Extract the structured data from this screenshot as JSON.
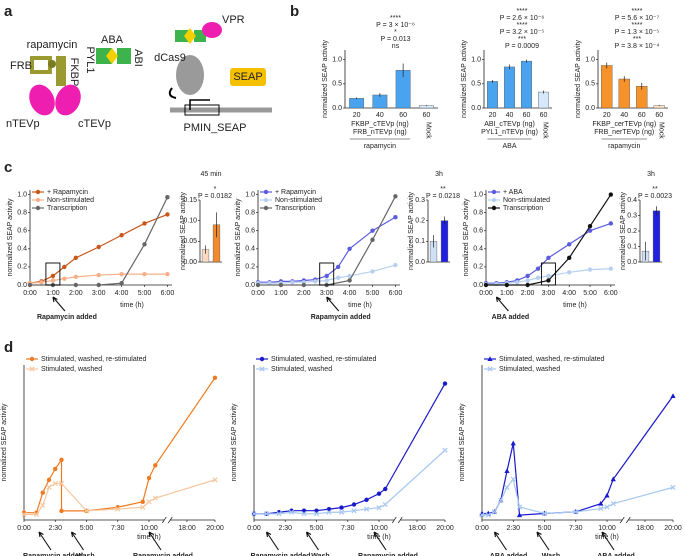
{
  "panels": [
    "a",
    "b",
    "c",
    "d"
  ],
  "diagram": {
    "labels": [
      "rapamycin",
      "ABA",
      "FRB",
      "FKBP",
      "PYL1",
      "ABI",
      "nTEVp",
      "cTEVp",
      "dCas9",
      "VPR",
      "SEAP",
      "PMIN_SEAP"
    ]
  },
  "chart_data": [
    {
      "type": "bar",
      "y_label": "normalized SEAP activity",
      "categories": [
        "20",
        "40",
        "60",
        "60"
      ],
      "values": [
        0.2,
        0.27,
        0.78,
        0.05
      ],
      "errors": [
        0.02,
        0.04,
        0.14,
        0.01
      ],
      "colors": [
        "#4aa3ee",
        "#4aa3ee",
        "#4aa3ee",
        "#d6e8fb"
      ],
      "ylim": [
        0,
        1.2
      ],
      "yticks": [
        {
          "value": 0,
          "label": "0.0"
        },
        {
          "value": 0.5,
          "label": "0.5"
        },
        {
          "value": 1,
          "label": "1.0"
        }
      ],
      "x_label": [
        "FKBP_cTEVp (ng)",
        "FRB_nTEVp (ng)"
      ],
      "group_label": "rapamycin",
      "mock_label": "Mock",
      "annotations": [
        "ns",
        "P = 0.013",
        "*",
        "P = 3 × 10⁻⁶",
        "****"
      ]
    },
    {
      "type": "bar",
      "y_label": "normalized SEAP activity",
      "categories": [
        "20",
        "40",
        "60",
        "60"
      ],
      "values": [
        0.55,
        0.85,
        0.97,
        0.33
      ],
      "errors": [
        0.03,
        0.05,
        0.03,
        0.03
      ],
      "colors": [
        "#4aa3ee",
        "#4aa3ee",
        "#4aa3ee",
        "#d6e8fb"
      ],
      "ylim": [
        0,
        1.2
      ],
      "yticks": [
        {
          "value": 0,
          "label": "0.0"
        },
        {
          "value": 0.5,
          "label": "0.5"
        },
        {
          "value": 1,
          "label": "1.0"
        }
      ],
      "x_label": [
        "ABI_cTEVp (ng)",
        "PYL1_nTEVp (ng)"
      ],
      "group_label": "ABA",
      "mock_label": "Mock",
      "annotations": [
        "P = 0.0009",
        "***",
        "P = 3.2 × 10⁻⁵",
        "****",
        "P = 2.6 × 10⁻⁶",
        "****"
      ]
    },
    {
      "type": "bar",
      "y_label": "normalized SEAP activity",
      "categories": [
        "20",
        "40",
        "60",
        "60"
      ],
      "values": [
        0.88,
        0.6,
        0.45,
        0.05
      ],
      "errors": [
        0.06,
        0.06,
        0.07,
        0.01
      ],
      "colors": [
        "#f5922a",
        "#f5922a",
        "#f5922a",
        "#fde2c4"
      ],
      "ylim": [
        0,
        1.2
      ],
      "yticks": [
        {
          "value": 0,
          "label": "0.0"
        },
        {
          "value": 0.5,
          "label": "0.5"
        },
        {
          "value": 1,
          "label": "1.0"
        }
      ],
      "x_label": [
        "FKBP_cerTEVp (ng)",
        "FRB_nerTEVp (ng)"
      ],
      "group_label": "rapamycin",
      "mock_label": "Mock",
      "annotations": [
        "P = 3.8 × 10⁻⁴",
        "***",
        "P = 1.3 × 10⁻⁵",
        "****",
        "P = 5.6 × 10⁻⁷",
        "****"
      ]
    },
    {
      "type": "line",
      "x_label": "time (h)",
      "y_label": "normalized SEAP activity",
      "annotations": [
        "Rapamycin added"
      ],
      "xlim": [
        0,
        6.2
      ],
      "xticks": [
        {
          "value": 0,
          "label": "0:00"
        },
        {
          "value": 1,
          "label": "1:00"
        },
        {
          "value": 2,
          "label": "2:00"
        },
        {
          "value": 3,
          "label": "3:00"
        },
        {
          "value": 4,
          "label": "4:00"
        },
        {
          "value": 5,
          "label": "5:00"
        },
        {
          "value": 6,
          "label": "6:00"
        }
      ],
      "ylim": [
        0,
        1.05
      ],
      "yticks": [
        {
          "value": 0,
          "label": "0.0"
        },
        {
          "value": 0.2,
          "label": "0.2"
        },
        {
          "value": 0.4,
          "label": "0.4"
        },
        {
          "value": 0.6,
          "label": "0.6"
        },
        {
          "value": 0.8,
          "label": "0.8"
        },
        {
          "value": 1,
          "label": "1.0"
        }
      ],
      "series": [
        {
          "name": "+ Rapamycin",
          "color": "#c8561a",
          "marker": "circle",
          "x": [
            0,
            0.5,
            1,
            1.5,
            2,
            3,
            4,
            5,
            6
          ],
          "values": [
            0.02,
            0.04,
            0.1,
            0.2,
            0.3,
            0.42,
            0.55,
            0.68,
            0.78
          ]
        },
        {
          "name": "Non-stimulated",
          "color": "#f5b08a",
          "marker": "circle",
          "x": [
            0,
            0.5,
            1,
            1.5,
            2,
            3,
            4,
            5,
            6
          ],
          "values": [
            0.02,
            0.03,
            0.05,
            0.07,
            0.09,
            0.11,
            0.12,
            0.12,
            0.12
          ]
        },
        {
          "name": "Transcription",
          "color": "#666666",
          "marker": "circle",
          "x": [
            0,
            1,
            2,
            3,
            4,
            5,
            6
          ],
          "values": [
            0,
            0,
            0,
            0,
            0.02,
            0.45,
            0.97
          ]
        }
      ]
    },
    {
      "type": "bar",
      "title": "45 min",
      "y_label": "normalized SEAP activity",
      "values": [
        0.03,
        0.09
      ],
      "errors": [
        0.01,
        0.03
      ],
      "colors": [
        "#fbd9c0",
        "#f08a2c"
      ],
      "ylim": [
        0,
        0.15
      ],
      "yticks": [
        {
          "value": 0,
          "label": "0.00"
        },
        {
          "value": 0.05,
          "label": "0.05"
        },
        {
          "value": 0.1,
          "label": "0.10"
        },
        {
          "value": 0.15,
          "label": "0.15"
        }
      ],
      "annotations": [
        "P = 0.0182",
        "*"
      ]
    },
    {
      "type": "line",
      "x_label": "time (h)",
      "y_label": "normalized SEAP activity",
      "annotations": [
        "Rapamycin added"
      ],
      "xlim": [
        0,
        6.2
      ],
      "xticks": [
        {
          "value": 0,
          "label": "0:00"
        },
        {
          "value": 1,
          "label": "1:00"
        },
        {
          "value": 2,
          "label": "2:00"
        },
        {
          "value": 3,
          "label": "3:00"
        },
        {
          "value": 4,
          "label": "4:00"
        },
        {
          "value": 5,
          "label": "5:00"
        },
        {
          "value": 6,
          "label": "6:00"
        }
      ],
      "ylim": [
        0,
        1.05
      ],
      "yticks": [
        {
          "value": 0,
          "label": "0.0"
        },
        {
          "value": 0.2,
          "label": "0.2"
        },
        {
          "value": 0.4,
          "label": "0.4"
        },
        {
          "value": 0.6,
          "label": "0.6"
        },
        {
          "value": 0.8,
          "label": "0.8"
        },
        {
          "value": 1,
          "label": "1.0"
        }
      ],
      "series": [
        {
          "name": "+ Rapamycin",
          "color": "#5b5be0",
          "marker": "circle",
          "x": [
            0,
            0.5,
            1,
            1.5,
            2,
            2.5,
            3,
            3.5,
            4,
            5,
            6
          ],
          "values": [
            0.03,
            0.03,
            0.04,
            0.04,
            0.05,
            0.06,
            0.1,
            0.2,
            0.4,
            0.6,
            0.75
          ]
        },
        {
          "name": "Non-stimulated",
          "color": "#b8d0f0",
          "marker": "circle",
          "x": [
            0,
            0.5,
            1,
            1.5,
            2,
            2.5,
            3,
            3.5,
            4,
            5,
            6
          ],
          "values": [
            0.02,
            0.02,
            0.02,
            0.03,
            0.03,
            0.04,
            0.05,
            0.08,
            0.1,
            0.15,
            0.22
          ]
        },
        {
          "name": "Transcription",
          "color": "#666666",
          "marker": "circle",
          "x": [
            0,
            1,
            2,
            3,
            4,
            5,
            6
          ],
          "values": [
            0,
            0,
            0,
            0,
            0.05,
            0.5,
            0.98
          ]
        }
      ]
    },
    {
      "type": "bar",
      "title": "3h",
      "y_label": "normalized SEAP activity",
      "values": [
        0.1,
        0.2
      ],
      "errors": [
        0.03,
        0.02
      ],
      "colors": [
        "#cfe0f5",
        "#2020e0"
      ],
      "ylim": [
        0,
        0.3
      ],
      "yticks": [
        {
          "value": 0,
          "label": "0.0"
        },
        {
          "value": 0.1,
          "label": "0.1"
        },
        {
          "value": 0.2,
          "label": "0.2"
        },
        {
          "value": 0.3,
          "label": "0.3"
        }
      ],
      "annotations": [
        "P = 0.0218",
        "**"
      ]
    },
    {
      "type": "line",
      "x_label": "time (h)",
      "y_label": "normalized SEAP activity",
      "annotations": [
        "ABA added"
      ],
      "xlim": [
        0,
        6.2
      ],
      "xticks": [
        {
          "value": 0,
          "label": "0:00"
        },
        {
          "value": 1,
          "label": "1:00"
        },
        {
          "value": 2,
          "label": "2:00"
        },
        {
          "value": 3,
          "label": "3:00"
        },
        {
          "value": 4,
          "label": "4:00"
        },
        {
          "value": 5,
          "label": "5:00"
        },
        {
          "value": 6,
          "label": "6:00"
        }
      ],
      "ylim": [
        0,
        1.05
      ],
      "yticks": [
        {
          "value": 0,
          "label": "0.0"
        },
        {
          "value": 0.2,
          "label": "0.2"
        },
        {
          "value": 0.4,
          "label": "0.4"
        },
        {
          "value": 0.6,
          "label": "0.6"
        },
        {
          "value": 0.8,
          "label": "0.8"
        },
        {
          "value": 1,
          "label": "1.0"
        }
      ],
      "series": [
        {
          "name": "+ ABA",
          "color": "#5b5be0",
          "marker": "circle",
          "x": [
            0,
            0.5,
            1,
            1.5,
            2,
            2.5,
            3,
            4,
            5,
            6
          ],
          "values": [
            0.02,
            0.02,
            0.03,
            0.05,
            0.1,
            0.18,
            0.3,
            0.45,
            0.6,
            0.68
          ]
        },
        {
          "name": "Non-stimulated",
          "color": "#b8d0f0",
          "marker": "circle",
          "x": [
            0,
            0.5,
            1,
            1.5,
            2,
            2.5,
            3,
            4,
            5,
            6
          ],
          "values": [
            0.01,
            0.01,
            0.02,
            0.03,
            0.05,
            0.08,
            0.1,
            0.14,
            0.17,
            0.18
          ]
        },
        {
          "name": "Transcription",
          "color": "#111111",
          "marker": "circle",
          "x": [
            0,
            1,
            2,
            3,
            4,
            5,
            6
          ],
          "values": [
            0,
            0,
            0,
            0.05,
            0.3,
            0.65,
            1.0
          ]
        }
      ]
    },
    {
      "type": "bar",
      "title": "3h",
      "y_label": "normalized SEAP activity",
      "values": [
        0.07,
        0.33
      ],
      "errors": [
        0.06,
        0.03
      ],
      "colors": [
        "#cfe0f5",
        "#2020e0"
      ],
      "ylim": [
        0,
        0.4
      ],
      "yticks": [
        {
          "value": 0,
          "label": "0.0"
        },
        {
          "value": 0.1,
          "label": "0.1"
        },
        {
          "value": 0.2,
          "label": "0.2"
        },
        {
          "value": 0.3,
          "label": "0.3"
        },
        {
          "value": 0.4,
          "label": "0.4"
        }
      ],
      "annotations": [
        "P = 0.0023",
        "**"
      ]
    },
    {
      "type": "line",
      "broken_axis": true,
      "x_label": "time (h)",
      "y_label": "normalized SEAP activity",
      "annotations": [
        "Rapamycin added",
        "Wash",
        "Rapamycin added"
      ],
      "xlim": [
        0,
        20
      ],
      "xticks": [
        {
          "value": 0,
          "label": "0:00"
        },
        {
          "value": 2.5,
          "label": "2:30"
        },
        {
          "value": 5,
          "label": "5:00"
        },
        {
          "value": 7.5,
          "label": "7:30"
        },
        {
          "value": 10,
          "label": "10:00"
        },
        {
          "value": 18,
          "label": "18:00"
        },
        {
          "value": 20,
          "label": "20:00"
        }
      ],
      "ylim": [
        0,
        0.85
      ],
      "series": [
        {
          "name": "Stimulated, washed, re-stimulated",
          "color": "#f07a20",
          "marker": "circle",
          "x": [
            0,
            1,
            1.5,
            2,
            2.5,
            3,
            3,
            5,
            7.5,
            9.5,
            10,
            10.5,
            20
          ],
          "values": [
            0.04,
            0.04,
            0.15,
            0.22,
            0.28,
            0.33,
            0.05,
            0.05,
            0.07,
            0.1,
            0.23,
            0.3,
            0.78
          ]
        },
        {
          "name": "Stimulated, washed",
          "color": "#f5c8a0",
          "marker": "cross",
          "x": [
            0,
            1,
            1.5,
            2,
            2.5,
            3,
            5,
            7.5,
            9.5,
            10,
            10.5,
            20
          ],
          "values": [
            0.03,
            0.03,
            0.08,
            0.18,
            0.2,
            0.2,
            0.05,
            0.06,
            0.07,
            0.1,
            0.12,
            0.22
          ]
        }
      ]
    },
    {
      "type": "line",
      "broken_axis": true,
      "x_label": "time (h)",
      "y_label": "normalized SEAP activity",
      "annotations": [
        "Rapamycin added",
        "Wash",
        "Rapamycin added"
      ],
      "xlim": [
        0,
        20
      ],
      "xticks": [
        {
          "value": 0,
          "label": "0:00"
        },
        {
          "value": 2.5,
          "label": "2:30"
        },
        {
          "value": 5,
          "label": "5:00"
        },
        {
          "value": 7.5,
          "label": "7:30"
        },
        {
          "value": 10,
          "label": "10:00"
        },
        {
          "value": 18,
          "label": "18:00"
        },
        {
          "value": 20,
          "label": "20:00"
        }
      ],
      "ylim": [
        0,
        1
      ],
      "series": [
        {
          "name": "Stimulated, washed, re-stimulated",
          "color": "#1a1acc",
          "marker": "circle",
          "x": [
            0,
            1,
            2,
            3,
            4,
            5,
            6,
            7,
            8,
            9,
            10,
            10.5,
            20
          ],
          "values": [
            0.04,
            0.04,
            0.05,
            0.06,
            0.06,
            0.06,
            0.07,
            0.08,
            0.1,
            0.13,
            0.17,
            0.2,
            0.88
          ]
        },
        {
          "name": "Stimulated, washed",
          "color": "#a8c8f0",
          "marker": "cross",
          "x": [
            0,
            1,
            2,
            3,
            4,
            5,
            6,
            7,
            8,
            9,
            10,
            10.5,
            20
          ],
          "values": [
            0.04,
            0.04,
            0.04,
            0.05,
            0.04,
            0.04,
            0.05,
            0.05,
            0.06,
            0.07,
            0.08,
            0.1,
            0.45
          ]
        }
      ]
    },
    {
      "type": "line",
      "broken_axis": true,
      "x_label": "time (h)",
      "y_label": "normalized SEAP activity",
      "annotations": [
        "ABA added",
        "Wash",
        "ABA added"
      ],
      "xlim": [
        0,
        20
      ],
      "xticks": [
        {
          "value": 0,
          "label": "0:00"
        },
        {
          "value": 2.5,
          "label": "2:30"
        },
        {
          "value": 5,
          "label": "5:00"
        },
        {
          "value": 7.5,
          "label": "7:30"
        },
        {
          "value": 10,
          "label": "10:00"
        },
        {
          "value": 18,
          "label": "18:00"
        },
        {
          "value": 20,
          "label": "20:00"
        }
      ],
      "ylim": [
        0,
        0.95
      ],
      "series": [
        {
          "name": "Stimulated, washed, re-stimulated",
          "color": "#1a1acc",
          "marker": "triangle",
          "x": [
            0,
            0.5,
            1,
            1.5,
            2,
            2.5,
            3,
            5,
            7.5,
            9.5,
            10,
            10.5,
            20
          ],
          "values": [
            0.04,
            0.04,
            0.05,
            0.12,
            0.3,
            0.47,
            0.03,
            0.04,
            0.05,
            0.1,
            0.15,
            0.25,
            0.76
          ]
        },
        {
          "name": "Stimulated, washed",
          "color": "#a8c8f0",
          "marker": "cross",
          "x": [
            0,
            0.5,
            1,
            1.5,
            2,
            2.5,
            3,
            5,
            7.5,
            9.5,
            10,
            10.5,
            20
          ],
          "values": [
            0.03,
            0.03,
            0.05,
            0.12,
            0.2,
            0.25,
            0.08,
            0.04,
            0.05,
            0.07,
            0.08,
            0.1,
            0.2
          ]
        }
      ]
    }
  ]
}
